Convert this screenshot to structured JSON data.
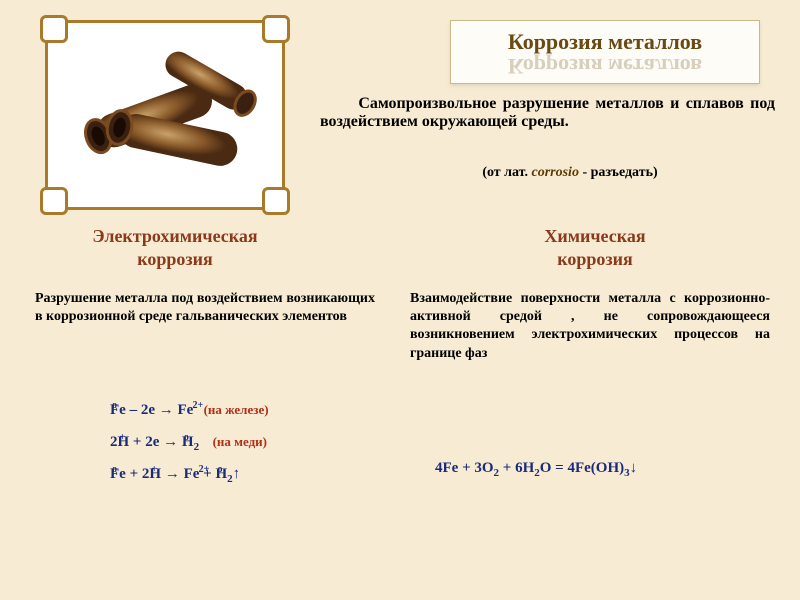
{
  "colors": {
    "background": "#f7ecd3",
    "title_text": "#6a4a14",
    "heading_text": "#8a3a1a",
    "body_text": "#000000",
    "definition_indent_color": "#000000",
    "annotation_red": "#b03018",
    "eq_blue": "#1a2a7a",
    "frame_border": "#a87a2a"
  },
  "title": {
    "main": "Коррозия металлов",
    "reflection": "Коррозия металлов"
  },
  "definition": {
    "text_indent": "      ",
    "text": "Самопроизвольное разрушение металлов и сплавов под воздействием окружающей среды."
  },
  "etymology": {
    "prefix": "(от лат. ",
    "word": "corrosio",
    "suffix": "  -  разъедать)"
  },
  "sections": {
    "left": {
      "heading_l1": "Электрохимическая",
      "heading_l2": "коррозия",
      "desc": "Разрушение металла под воздействием возникающих в коррозионной среде гальванических элементов"
    },
    "right": {
      "heading_l1": "Химическая",
      "heading_l2": "коррозия",
      "desc": "Взаимодействие поверхности металла с коррозионно-активной средой , не сопровождающееся возникновением электрохимических процессов на границе фаз"
    }
  },
  "equations_left": [
    {
      "expr_html": "<span style='position:relative'>Fe<span class='sup-top' style='left:2px'>o</span></span> – 2e → <span style='position:relative'>Fe<span class='sup-top' style='left:15px'>2+</span></span>",
      "annotation": "  (на железе)"
    },
    {
      "expr_html": "2<span style='position:relative'>H<span class='sup-top' style='left:2px'>+</span></span> + 2e → <span style='position:relative'>H<sub>2</sub><span class='sup-top' style='left:2px'>o</span></span>",
      "annotation": "   (на меди)"
    },
    {
      "expr_html": "<span style='position:relative'>Fe<span class='sup-top' style='left:2px'>o</span></span> + 2<span style='position:relative'>H<span class='sup-top' style='left:2px'>+</span></span> → <span style='position:relative'>Fe<span class='sup-top' style='left:15px'>2+</span></span> + <span style='position:relative'>H<sub>2</sub><span class='sup-top' style='left:2px'>o</span></span>↑",
      "annotation": ""
    }
  ],
  "equation_right": {
    "expr_html": "4Fe + 3O<sub>2</sub> + 6H<sub>2</sub>O = 4Fe(OH)<sub>3</sub>↓"
  },
  "image": {
    "alt": "corroded-pipes"
  }
}
